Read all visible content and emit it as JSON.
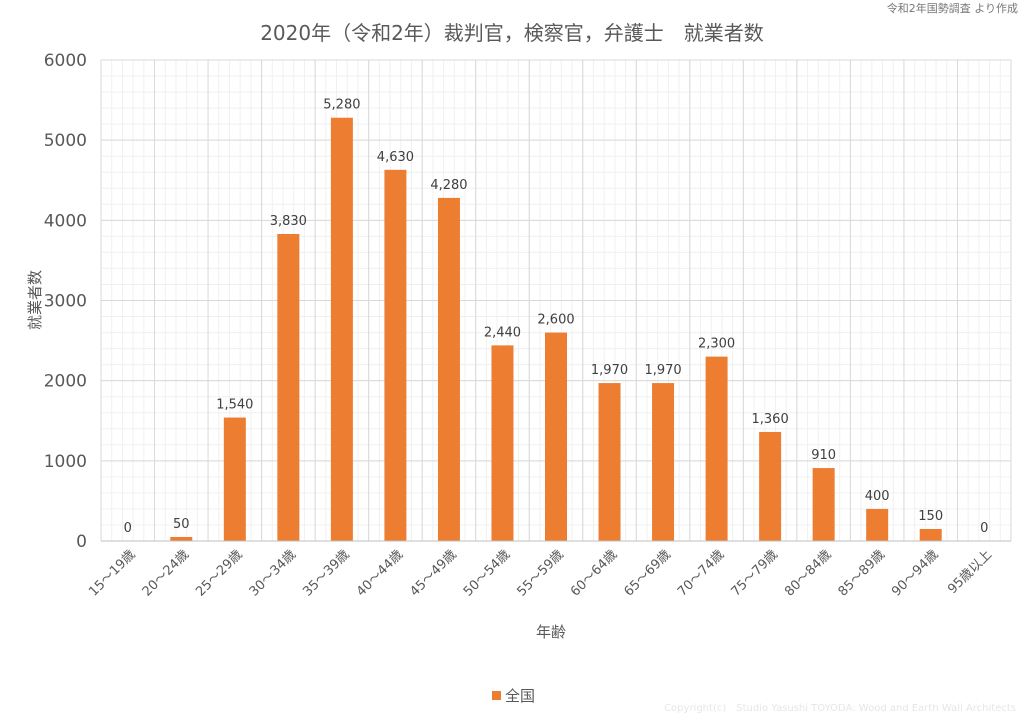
{
  "source_note": "令和2年国勢調査 より作成",
  "copyright": "Copyright(c)　Studio Yasushi TOYODA: Wood and Earth Wall Architects",
  "chart_data": {
    "type": "bar",
    "title": "2020年（令和2年）裁判官，検察官，弁護士　就業者数",
    "xlabel": "年齢",
    "ylabel": "就業者数",
    "ylim": [
      0,
      6000
    ],
    "yticks": [
      0,
      1000,
      2000,
      3000,
      4000,
      5000,
      6000
    ],
    "grid": true,
    "legend_position": "bottom",
    "categories": [
      "15～19歳",
      "20～24歳",
      "25～29歳",
      "30～34歳",
      "35～39歳",
      "40～44歳",
      "45～49歳",
      "50～54歳",
      "55～59歳",
      "60～64歳",
      "65～69歳",
      "70～74歳",
      "75～79歳",
      "80～84歳",
      "85～89歳",
      "90～94歳",
      "95歳以上"
    ],
    "series": [
      {
        "name": "全国",
        "color": "#ED7D31",
        "values": [
          0,
          50,
          1540,
          3830,
          5280,
          4630,
          4280,
          2440,
          2600,
          1970,
          1970,
          2300,
          1360,
          910,
          400,
          150,
          0
        ],
        "labels": [
          "0",
          "50",
          "1,540",
          "3,830",
          "5,280",
          "4,630",
          "4,280",
          "2,440",
          "2,600",
          "1,970",
          "1,970",
          "2,300",
          "1,360",
          "910",
          "400",
          "150",
          "0"
        ]
      }
    ]
  }
}
